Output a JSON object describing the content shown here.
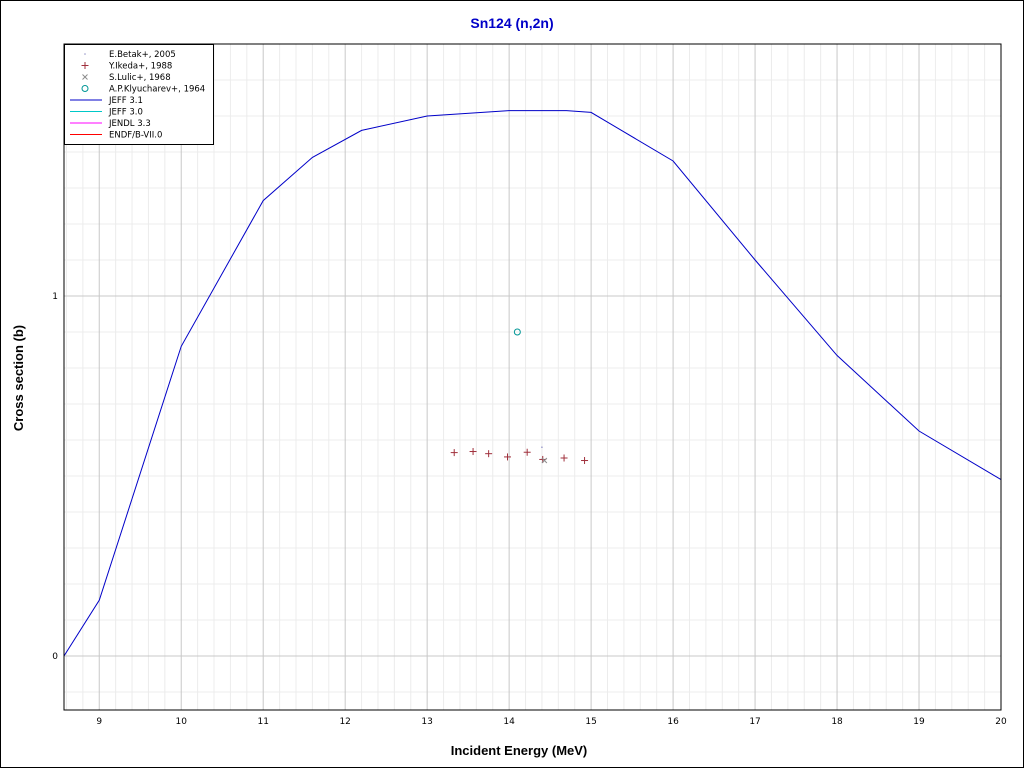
{
  "chart_data": {
    "type": "line",
    "title": "Sn124 (n,2n)",
    "xlabel": "Incident Energy (MeV)",
    "ylabel": "Cross section (b)",
    "xlim": [
      8.57,
      20
    ],
    "ylim": [
      -0.15,
      1.7
    ],
    "x_ticks": [
      9,
      10,
      11,
      12,
      13,
      14,
      15,
      16,
      17,
      18,
      19,
      20
    ],
    "x_tick_labels": [
      "9",
      "10",
      "11",
      "12",
      "13",
      "14",
      "15",
      "16",
      "17",
      "18",
      "19",
      "20"
    ],
    "y_ticks": [
      0,
      1
    ],
    "y_tick_labels": [
      "0",
      "1"
    ],
    "grid": true,
    "legend_position": "top-left",
    "colors": {
      "title": "#0000c8",
      "jeff31": "#0000c8",
      "jeff30": "#00c8c8",
      "jendl33": "#ff00ff",
      "endfb7": "#ff0000",
      "ikeda": "#a0303c",
      "lulic": "#8c8c8c",
      "klyucharev": "#009696"
    },
    "series": [
      {
        "name": "E.Betak+, 2005",
        "kind": "marker",
        "marker": "dot",
        "color": "#9696c8",
        "points": [
          [
            14.4,
            0.58
          ]
        ]
      },
      {
        "name": "Y.Ikeda+, 1988",
        "kind": "marker",
        "marker": "plus",
        "color": "#a0303c",
        "points": [
          [
            13.33,
            0.565
          ],
          [
            13.56,
            0.568
          ],
          [
            13.75,
            0.562
          ],
          [
            13.98,
            0.553
          ],
          [
            14.22,
            0.566
          ],
          [
            14.41,
            0.546
          ],
          [
            14.67,
            0.55
          ],
          [
            14.92,
            0.543
          ]
        ]
      },
      {
        "name": "S.Lulic+, 1968",
        "kind": "marker",
        "marker": "cross",
        "color": "#8c8c8c",
        "points": [
          [
            14.43,
            0.543
          ]
        ]
      },
      {
        "name": "A.P.Klyucharev+, 1964",
        "kind": "marker",
        "marker": "circle",
        "color": "#009696",
        "points": [
          [
            14.1,
            0.9
          ]
        ]
      },
      {
        "name": "JEFF 3.1",
        "kind": "line",
        "color": "#0000c8",
        "points": [
          [
            8.57,
            0
          ],
          [
            9,
            0.155
          ],
          [
            10,
            0.86
          ],
          [
            11,
            1.265
          ],
          [
            11.6,
            1.385
          ],
          [
            12.2,
            1.46
          ],
          [
            13,
            1.5
          ],
          [
            14,
            1.515
          ],
          [
            14.7,
            1.515
          ],
          [
            15,
            1.51
          ],
          [
            16,
            1.375
          ],
          [
            17,
            1.1
          ],
          [
            18,
            0.835
          ],
          [
            19,
            0.625
          ],
          [
            20,
            0.49
          ]
        ]
      },
      {
        "name": "JEFF 3.0",
        "kind": "line",
        "color": "#00c8c8",
        "points": []
      },
      {
        "name": "JENDL 3.3",
        "kind": "line",
        "color": "#ff00ff",
        "points": []
      },
      {
        "name": "ENDF/B-VII.0",
        "kind": "line",
        "color": "#ff0000",
        "points": []
      }
    ]
  }
}
